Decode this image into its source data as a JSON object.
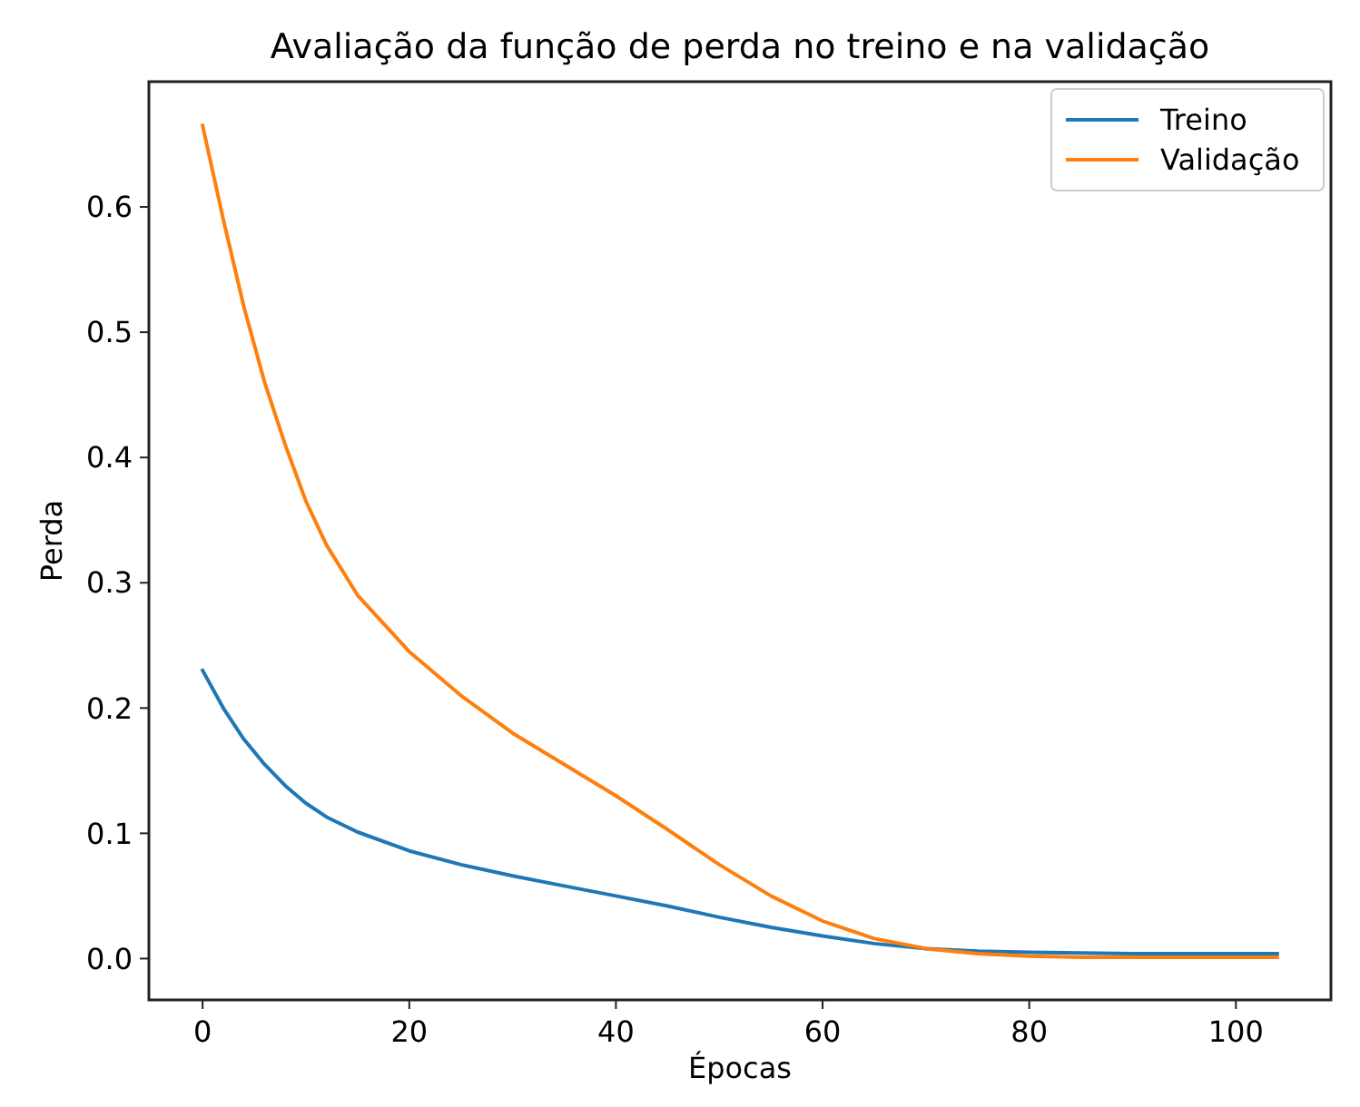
{
  "chart_data": {
    "type": "line",
    "title": "Avaliação da função de perda no treino e na validação",
    "xlabel": "Épocas",
    "ylabel": "Perda",
    "xlim": [
      -5.2,
      109.2
    ],
    "xticks": [
      0,
      20,
      40,
      60,
      80,
      100
    ],
    "ylim": [
      -0.033,
      0.7
    ],
    "yticks": [
      {
        "value": 0,
        "label": "0.0"
      },
      0.1,
      0.2,
      0.3,
      0.4,
      0.5,
      0.6
    ],
    "grid": false,
    "legend": "top right",
    "marker": "none",
    "line_style": "solid",
    "series": [
      {
        "name": "Treino",
        "color": "#1f77b4",
        "x": [
          0,
          2,
          4,
          6,
          8,
          10,
          12,
          15,
          20,
          25,
          30,
          35,
          40,
          45,
          50,
          55,
          60,
          65,
          70,
          75,
          80,
          90,
          104
        ],
        "values": [
          0.23,
          0.2,
          0.175,
          0.155,
          0.138,
          0.124,
          0.113,
          0.101,
          0.086,
          0.075,
          0.066,
          0.058,
          0.05,
          0.042,
          0.033,
          0.025,
          0.018,
          0.012,
          0.008,
          0.006,
          0.005,
          0.004,
          0.004
        ]
      },
      {
        "name": "Validação",
        "color": "#ff7f0e",
        "x": [
          0,
          2,
          4,
          6,
          8,
          10,
          12,
          15,
          20,
          25,
          30,
          35,
          40,
          45,
          50,
          55,
          60,
          65,
          70,
          75,
          80,
          85,
          104
        ],
        "values": [
          0.665,
          0.59,
          0.52,
          0.46,
          0.41,
          0.365,
          0.33,
          0.29,
          0.245,
          0.21,
          0.18,
          0.155,
          0.13,
          0.103,
          0.075,
          0.05,
          0.03,
          0.016,
          0.008,
          0.004,
          0.002,
          0.001,
          0.001
        ]
      }
    ]
  }
}
